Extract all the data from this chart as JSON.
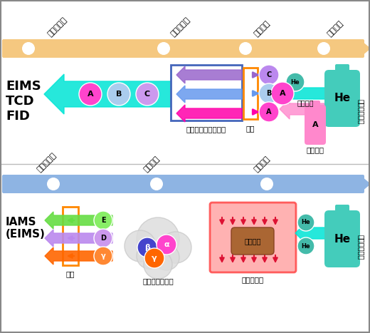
{
  "bg_color": "#ffffff",
  "top_bar_color": "#F5C880",
  "bottom_bar_color": "#8EB4E3",
  "top_labels": [
    "ガス種検出",
    "ガス種分離",
    "触媒反応",
    "ガス調整"
  ],
  "bottom_labels": [
    "分離・検出",
    "触媒反応",
    "ガス生成"
  ],
  "cyan_arrow_color": "#00E5D5",
  "purple_arrow_color": "#9966CC",
  "blue_arrow_color": "#6699EE",
  "magenta_arrow_color": "#FF00AA",
  "pink_arrow_color": "#FF88CC",
  "orange_rect_color": "#FF8800",
  "blue_rect_color": "#4466BB",
  "teal_color": "#44BBAA",
  "pink_color": "#FF88CC",
  "green_color": "#66DD44",
  "orange_color": "#FF6600"
}
